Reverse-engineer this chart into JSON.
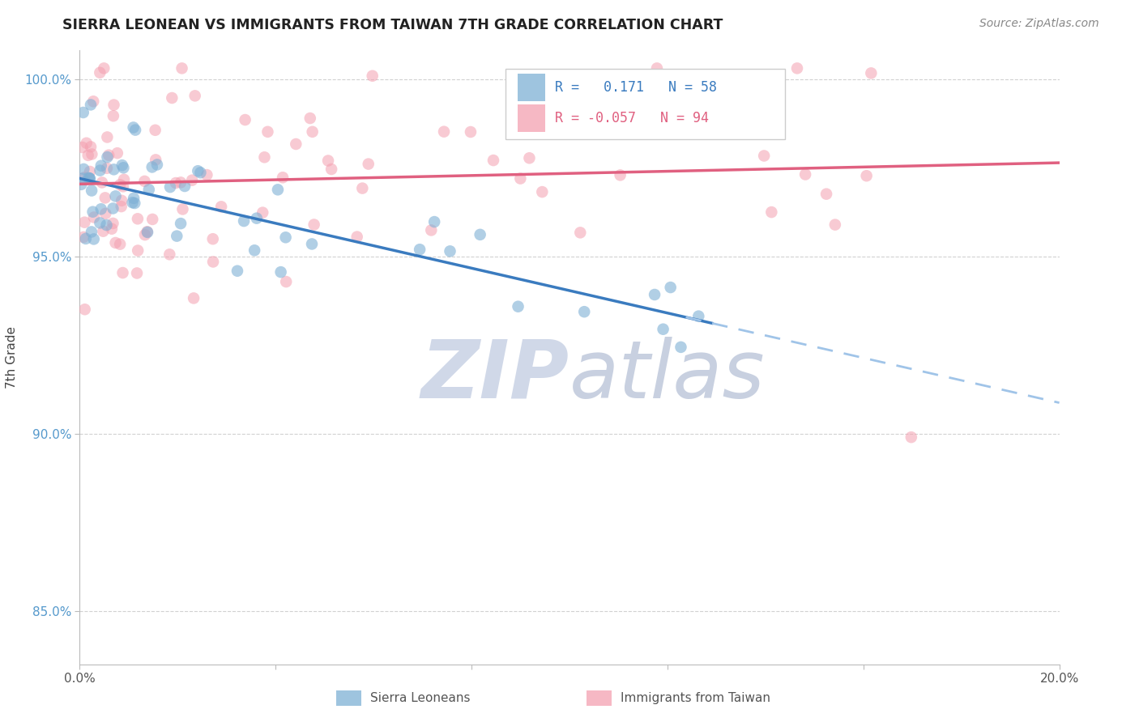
{
  "title": "SIERRA LEONEAN VS IMMIGRANTS FROM TAIWAN 7TH GRADE CORRELATION CHART",
  "source": "Source: ZipAtlas.com",
  "ylabel": "7th Grade",
  "xlim": [
    0.0,
    0.2
  ],
  "ylim": [
    0.835,
    1.008
  ],
  "xtick_vals": [
    0.0,
    0.04,
    0.08,
    0.12,
    0.16,
    0.2
  ],
  "xtick_labels": [
    "0.0%",
    "",
    "",
    "",
    "",
    "20.0%"
  ],
  "ytick_vals": [
    0.85,
    0.9,
    0.95,
    1.0
  ],
  "ytick_labels": [
    "85.0%",
    "90.0%",
    "95.0%",
    "100.0%"
  ],
  "blue_color": "#7EB0D5",
  "pink_color": "#F4A0B0",
  "blue_line_color": "#3A7BBF",
  "blue_dash_color": "#A0C4E8",
  "pink_line_color": "#E06080",
  "blue_R": 0.171,
  "blue_N": 58,
  "pink_R": -0.057,
  "pink_N": 94,
  "legend_label_blue": "Sierra Leoneans",
  "legend_label_pink": "Immigrants from Taiwan",
  "legend_text_blue_color": "#3A7BBF",
  "legend_text_pink_color": "#E06080",
  "ytick_color": "#5599CC",
  "xtick_color": "#555555",
  "watermark_zip_color": "#D0D8E8",
  "watermark_atlas_color": "#C8D0E0"
}
